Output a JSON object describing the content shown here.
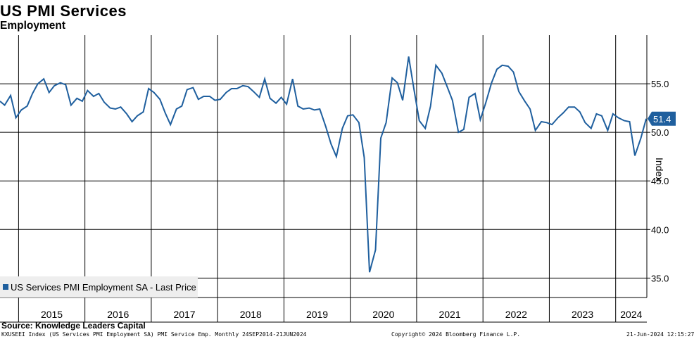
{
  "chart_data": {
    "type": "line",
    "title": "US PMI Services",
    "subtitle": "Employment",
    "ylabel": "Index",
    "ylim": [
      33,
      60
    ],
    "yticks": [
      35.0,
      40.0,
      45.0,
      50.0,
      55.0
    ],
    "ytick_labels": [
      "35.0",
      "40.0",
      "45.0",
      "50.0",
      "55.0"
    ],
    "xlim": [
      2014.72,
      2024.47
    ],
    "year_labels": [
      "2015",
      "2016",
      "2017",
      "2018",
      "2019",
      "2020",
      "2021",
      "2022",
      "2023",
      "2024"
    ],
    "last_value_label": "51.4",
    "series": [
      {
        "name": "US Services PMI Employment SA - Last Price",
        "color": "#1f5f9e",
        "x": [
          2014.72,
          2014.79,
          2014.88,
          2014.96,
          2015.04,
          2015.13,
          2015.21,
          2015.29,
          2015.38,
          2015.46,
          2015.54,
          2015.63,
          2015.71,
          2015.79,
          2015.88,
          2015.96,
          2016.04,
          2016.13,
          2016.21,
          2016.29,
          2016.38,
          2016.46,
          2016.54,
          2016.63,
          2016.71,
          2016.79,
          2016.88,
          2016.96,
          2017.04,
          2017.13,
          2017.21,
          2017.29,
          2017.38,
          2017.46,
          2017.54,
          2017.63,
          2017.71,
          2017.79,
          2017.88,
          2017.96,
          2018.04,
          2018.13,
          2018.21,
          2018.29,
          2018.38,
          2018.46,
          2018.54,
          2018.63,
          2018.71,
          2018.79,
          2018.88,
          2018.96,
          2019.04,
          2019.13,
          2019.21,
          2019.29,
          2019.38,
          2019.46,
          2019.54,
          2019.63,
          2019.71,
          2019.79,
          2019.88,
          2019.96,
          2020.04,
          2020.13,
          2020.21,
          2020.29,
          2020.38,
          2020.46,
          2020.54,
          2020.63,
          2020.71,
          2020.79,
          2020.88,
          2020.96,
          2021.04,
          2021.13,
          2021.21,
          2021.29,
          2021.38,
          2021.46,
          2021.54,
          2021.63,
          2021.71,
          2021.79,
          2021.88,
          2021.96,
          2022.04,
          2022.13,
          2022.21,
          2022.29,
          2022.38,
          2022.46,
          2022.54,
          2022.63,
          2022.71,
          2022.79,
          2022.88,
          2022.96,
          2023.04,
          2023.13,
          2023.21,
          2023.29,
          2023.38,
          2023.46,
          2023.54,
          2023.63,
          2023.71,
          2023.79,
          2023.88,
          2023.96,
          2024.04,
          2024.13,
          2024.21,
          2024.29,
          2024.38,
          2024.46
        ],
        "values": [
          53.2,
          52.8,
          53.8,
          51.5,
          52.3,
          52.7,
          54.0,
          55.0,
          55.5,
          54.1,
          54.8,
          55.1,
          54.9,
          52.8,
          53.5,
          53.2,
          54.3,
          53.7,
          54.0,
          53.1,
          52.5,
          52.4,
          52.6,
          51.9,
          51.1,
          51.7,
          52.1,
          54.5,
          54.1,
          53.4,
          52.0,
          50.8,
          52.4,
          52.7,
          54.4,
          54.6,
          53.4,
          53.7,
          53.7,
          53.3,
          53.4,
          54.1,
          54.5,
          54.5,
          54.8,
          54.7,
          54.2,
          53.6,
          55.5,
          53.5,
          53.0,
          53.6,
          52.9,
          55.5,
          52.7,
          52.4,
          52.5,
          52.3,
          52.4,
          50.6,
          48.8,
          47.5,
          50.4,
          51.7,
          51.8,
          51.0,
          47.4,
          35.6,
          37.9,
          49.4,
          51.0,
          55.6,
          55.1,
          53.3,
          57.8,
          54.4,
          51.2,
          50.4,
          52.7,
          56.9,
          56.1,
          54.7,
          53.3,
          50.0,
          50.3,
          53.6,
          54.0,
          51.3,
          53.0,
          55.1,
          56.5,
          56.9,
          56.8,
          56.2,
          54.2,
          53.2,
          52.4,
          50.2,
          51.1,
          51.0,
          50.8,
          51.5,
          52.0,
          52.6,
          52.6,
          52.1,
          51.0,
          50.4,
          51.9,
          51.7,
          50.2,
          51.9,
          51.5,
          51.2,
          51.1,
          47.6,
          49.4,
          51.4
        ]
      }
    ]
  },
  "legend": {
    "label": "US Services PMI Employment SA - Last Price"
  },
  "source": "Source:  Knowledge Leaders Capital",
  "footer": {
    "left": "KXUSEEI Index (US Services PMI Employment SA) PMI Service Emp.  Monthly 24SEP2014-21JUN2024",
    "center": "Copyright© 2024 Bloomberg Finance L.P.",
    "right": "21-Jun-2024 12:15:27"
  }
}
